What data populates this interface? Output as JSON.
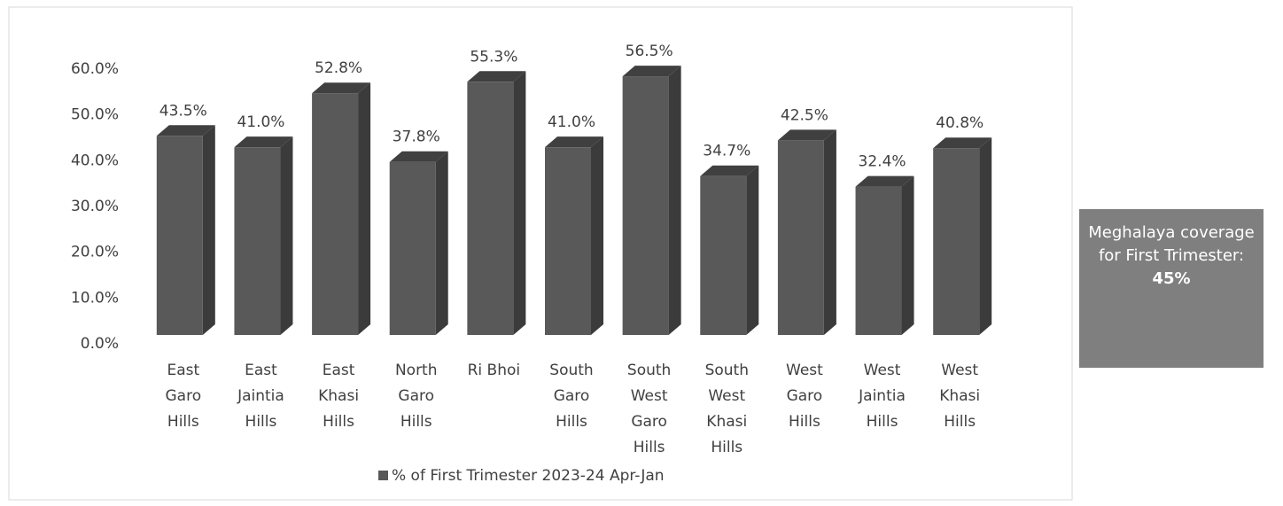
{
  "chart_data": {
    "type": "bar3d",
    "categories": [
      "East Garo Hills",
      "East Jaintia Hills",
      "East Khasi Hills",
      "North Garo Hills",
      "Ri Bhoi",
      "South Garo Hills",
      "South West Garo Hills",
      "South West Khasi Hills",
      "West Garo Hills",
      "West Jaintia Hills",
      "West Khasi Hills"
    ],
    "series": [
      {
        "name": "% of First Trimester 2023-24 Apr-Jan",
        "color": "#595959",
        "values": [
          43.5,
          41.0,
          52.8,
          37.8,
          55.3,
          41.0,
          56.5,
          34.7,
          42.5,
          32.4,
          40.8
        ],
        "value_labels": [
          "43.5%",
          "41.0%",
          "52.8%",
          "37.8%",
          "55.3%",
          "41.0%",
          "56.5%",
          "34.7%",
          "42.5%",
          "32.4%",
          "40.8%"
        ]
      }
    ],
    "ylim": [
      0,
      60
    ],
    "yticks": [
      {
        "value": 0,
        "label": "0.0%"
      },
      {
        "value": 10,
        "label": "10.0%"
      },
      {
        "value": 20,
        "label": "20.0%"
      },
      {
        "value": 30,
        "label": "30.0%"
      },
      {
        "value": 40,
        "label": "40.0%"
      },
      {
        "value": 50,
        "label": "50.0%"
      },
      {
        "value": 60,
        "label": "60.0%"
      }
    ],
    "grid": false,
    "legend": "bottom",
    "annotation": {
      "text": "Meghalaya coverage for First Trimester:",
      "value_text": "45%"
    }
  }
}
